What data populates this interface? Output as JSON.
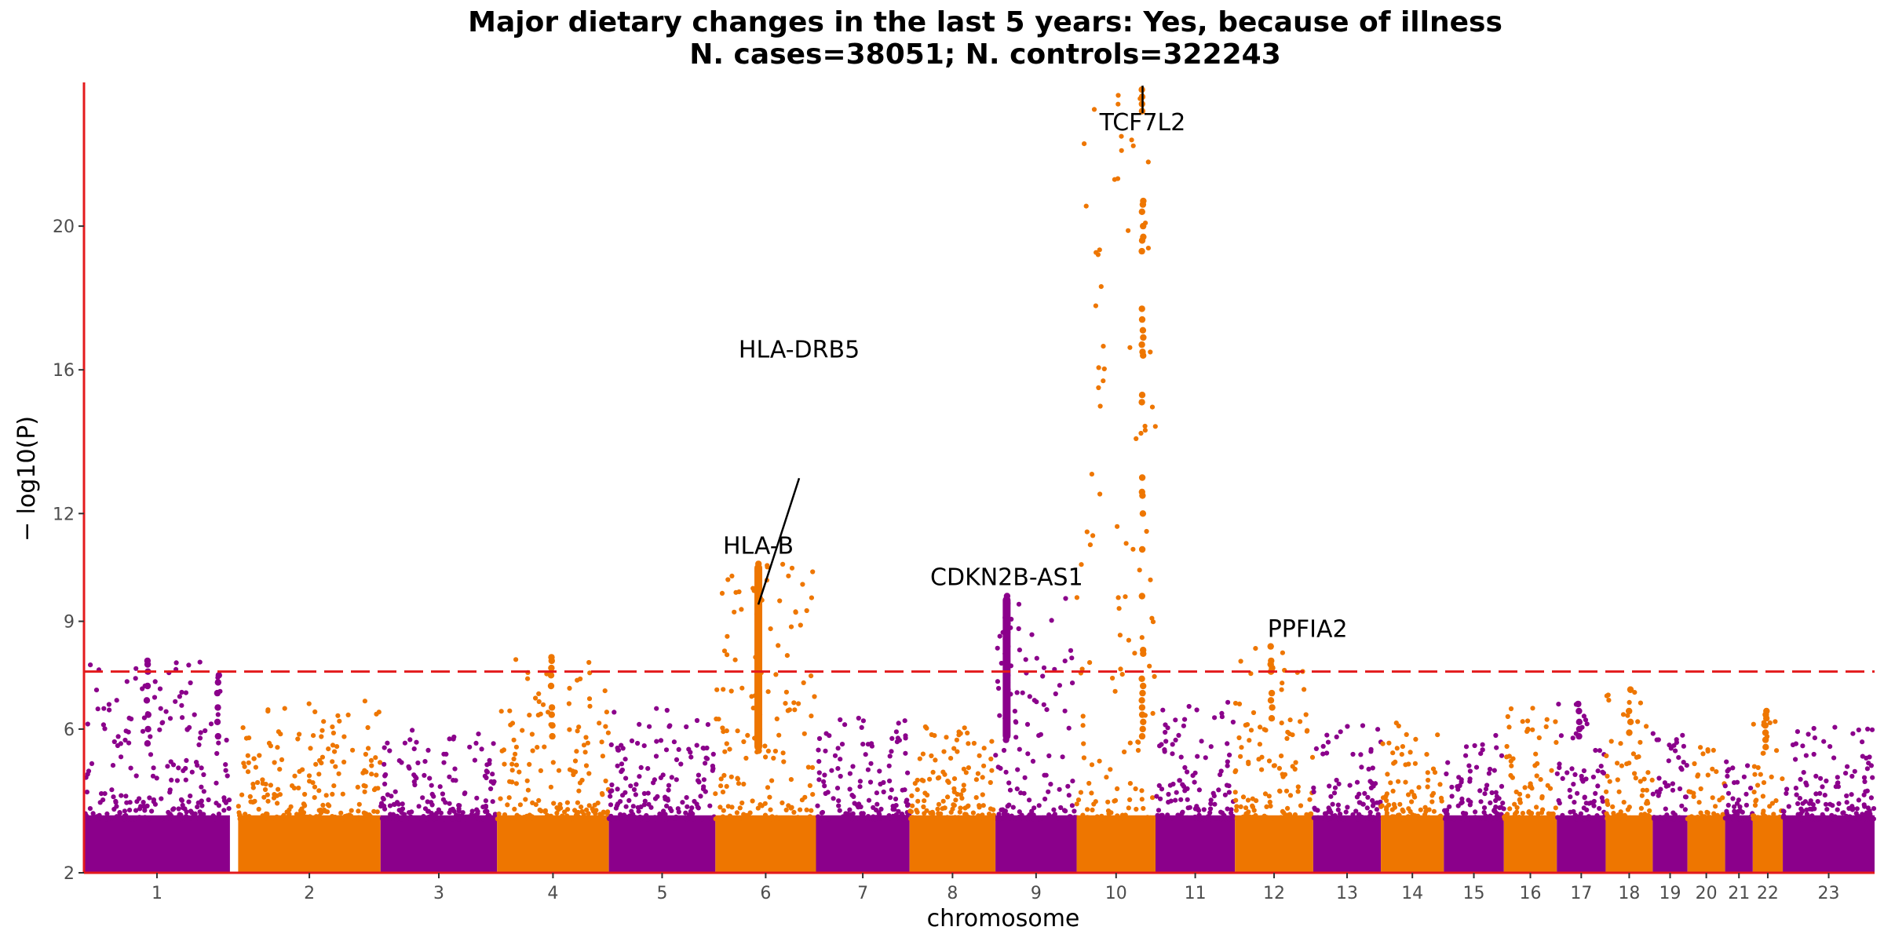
{
  "chart_data": {
    "type": "scatter",
    "title": "Major dietary changes in the last 5 years: Yes, because of illness",
    "subtitle": "N. cases=38051; N. controls=322243",
    "xlabel": "chromosome",
    "ylabel": "− log10(P)",
    "ylim": [
      2,
      24
    ],
    "yticks": [
      2,
      6,
      9,
      12,
      16,
      20
    ],
    "significance_threshold": 7.6,
    "colors": {
      "odd": "#8b008b",
      "even": "#ee7600",
      "axis": "#e31a1c",
      "threshold": "#e31a1c"
    },
    "chromosomes": [
      {
        "label": "1",
        "start": 0,
        "end": 248,
        "max": 7.9
      },
      {
        "label": "2",
        "start": 262,
        "end": 504,
        "max": 6.8
      },
      {
        "label": "3",
        "start": 504,
        "end": 702,
        "max": 6.0
      },
      {
        "label": "4",
        "start": 702,
        "end": 892,
        "max": 8.0
      },
      {
        "label": "5",
        "start": 892,
        "end": 1073,
        "max": 6.6
      },
      {
        "label": "6",
        "start": 1073,
        "end": 1244,
        "max": 10.6
      },
      {
        "label": "7",
        "start": 1244,
        "end": 1403,
        "max": 6.5
      },
      {
        "label": "8",
        "start": 1403,
        "end": 1549,
        "max": 6.1
      },
      {
        "label": "9",
        "start": 1549,
        "end": 1687,
        "max": 9.7
      },
      {
        "label": "10",
        "start": 1687,
        "end": 1821,
        "max": 23.8
      },
      {
        "label": "11",
        "start": 1821,
        "end": 1956,
        "max": 6.8
      },
      {
        "label": "12",
        "start": 1956,
        "end": 2089,
        "max": 8.3
      },
      {
        "label": "13",
        "start": 2089,
        "end": 2204,
        "max": 6.1
      },
      {
        "label": "14",
        "start": 2204,
        "end": 2311,
        "max": 6.3
      },
      {
        "label": "15",
        "start": 2311,
        "end": 2413,
        "max": 5.9
      },
      {
        "label": "16",
        "start": 2413,
        "end": 2503,
        "max": 6.6
      },
      {
        "label": "17",
        "start": 2503,
        "end": 2586,
        "max": 6.7
      },
      {
        "label": "18",
        "start": 2586,
        "end": 2666,
        "max": 7.1
      },
      {
        "label": "19",
        "start": 2666,
        "end": 2725,
        "max": 6.3
      },
      {
        "label": "20",
        "start": 2725,
        "end": 2789,
        "max": 5.5
      },
      {
        "label": "21",
        "start": 2789,
        "end": 2836,
        "max": 5.1
      },
      {
        "label": "22",
        "start": 2836,
        "end": 2887,
        "max": 6.5
      },
      {
        "label": "23",
        "start": 2887,
        "end": 3043,
        "max": 6.1
      }
    ],
    "peaks": [
      {
        "chr": "1",
        "x": 108,
        "max": 7.9,
        "values": [
          7.9,
          7.8,
          7.6,
          7.2,
          6.8,
          6.4,
          6.0,
          5.6
        ]
      },
      {
        "chr": "1",
        "x": 228,
        "max": 7.5,
        "values": [
          7.5,
          7.3,
          7.0,
          6.6,
          6.2,
          5.8
        ]
      },
      {
        "chr": "4",
        "x": 795,
        "max": 8.0,
        "values": [
          8.0,
          7.9,
          7.7,
          7.5,
          7.2,
          6.6,
          6.4,
          6.1,
          5.8
        ]
      },
      {
        "chr": "6",
        "x": 1146,
        "max": 10.6,
        "dense": true,
        "values": [
          10.6,
          10.4,
          10.2,
          10.0,
          9.8,
          9.6,
          9.4,
          9.2,
          9.0,
          8.8,
          8.6,
          8.4,
          8.2,
          8.0,
          7.8,
          7.6,
          7.4,
          7.2,
          7.0,
          6.8,
          6.6,
          6.4,
          6.2,
          6.0,
          5.8,
          5.6,
          5.4
        ]
      },
      {
        "chr": "9",
        "x": 1568,
        "max": 9.7,
        "dense": true,
        "values": [
          9.7,
          9.5,
          9.3,
          9.1,
          8.9,
          8.7,
          8.5,
          8.3,
          8.1,
          7.9,
          7.7,
          7.5,
          7.3,
          7.1,
          6.9,
          6.6,
          6.3,
          6.0,
          5.7
        ]
      },
      {
        "chr": "10",
        "x": 1799,
        "max": 23.8,
        "values": [
          23.8,
          23.6,
          23.4,
          23.2,
          20.7,
          20.6,
          20.4,
          20.0,
          19.7,
          19.6,
          19.3,
          17.7,
          17.4,
          17.1,
          16.9,
          16.7,
          16.5,
          16.4,
          15.3,
          15.1,
          13.0,
          12.6,
          12.5,
          12.0,
          11.0,
          9.7,
          8.2,
          8.1,
          7.4,
          7.2,
          7.0,
          6.8,
          6.6,
          6.4,
          6.2,
          6.0,
          5.8
        ]
      },
      {
        "chr": "12",
        "x": 2018,
        "max": 8.3,
        "values": [
          8.3,
          7.9,
          7.8,
          7.7,
          7.6,
          7.0,
          6.8,
          6.6,
          6.3
        ]
      },
      {
        "chr": "17",
        "x": 2540,
        "max": 6.7,
        "values": [
          6.7,
          6.5,
          6.2,
          6.0,
          5.8
        ]
      },
      {
        "chr": "18",
        "x": 2627,
        "max": 7.1,
        "values": [
          7.1,
          6.5,
          6.2,
          5.9
        ]
      },
      {
        "chr": "22",
        "x": 2858,
        "max": 6.5,
        "values": [
          6.5,
          6.4,
          6.3,
          6.1,
          5.9,
          5.7,
          5.5
        ]
      }
    ],
    "annotations": [
      {
        "text": "HLA-DRB5",
        "x": 1146,
        "y": 9.4
      },
      {
        "text": "HLA-B",
        "x": 1146,
        "y": 10.6
      },
      {
        "text": "CDKN2B-AS1",
        "x": 1568,
        "y": 9.7
      },
      {
        "text": "TCF7L2",
        "x": 1799,
        "y": 23.8
      },
      {
        "text": "PPFIA2",
        "x": 2018,
        "y": 8.3
      }
    ],
    "grid": false,
    "legend": "none"
  }
}
